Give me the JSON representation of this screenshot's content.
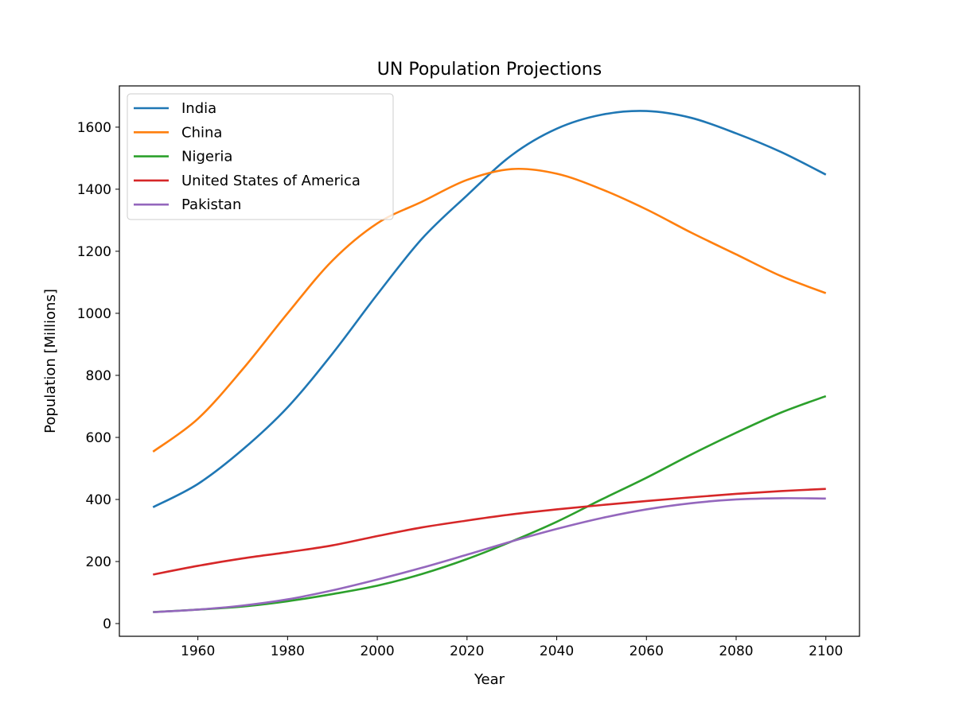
{
  "chart_data": {
    "type": "line",
    "title": "UN Population Projections",
    "xlabel": "Year",
    "ylabel": "Population [Millions]",
    "xlim": [
      1942.5,
      2107.5
    ],
    "ylim": [
      -41,
      1733
    ],
    "xticks": [
      1960,
      1980,
      2000,
      2020,
      2040,
      2060,
      2080,
      2100
    ],
    "yticks": [
      0,
      200,
      400,
      600,
      800,
      1000,
      1200,
      1400,
      1600
    ],
    "grid": false,
    "legend_position": "upper-left",
    "x": [
      1950,
      1960,
      1970,
      1980,
      1990,
      2000,
      2010,
      2020,
      2030,
      2040,
      2050,
      2060,
      2070,
      2080,
      2090,
      2100
    ],
    "series": [
      {
        "name": "India",
        "color": "#1f77b4",
        "values": [
          375,
          450,
          561,
          697,
          870,
          1061,
          1241,
          1380,
          1510,
          1595,
          1640,
          1652,
          1630,
          1580,
          1520,
          1447
        ]
      },
      {
        "name": "China",
        "color": "#ff7f0e",
        "values": [
          554,
          660,
          820,
          1000,
          1170,
          1290,
          1360,
          1430,
          1465,
          1450,
          1400,
          1335,
          1260,
          1190,
          1120,
          1065
        ]
      },
      {
        "name": "Nigeria",
        "color": "#2ca02c",
        "values": [
          37,
          45,
          55,
          72,
          95,
          122,
          160,
          208,
          265,
          328,
          400,
          470,
          545,
          615,
          680,
          733
        ]
      },
      {
        "name": "United States of America",
        "color": "#d62728",
        "values": [
          158,
          186,
          210,
          230,
          252,
          282,
          310,
          332,
          352,
          368,
          382,
          395,
          407,
          418,
          427,
          434
        ]
      },
      {
        "name": "Pakistan",
        "color": "#9467bd",
        "values": [
          37,
          45,
          58,
          78,
          107,
          142,
          180,
          222,
          265,
          305,
          340,
          368,
          388,
          400,
          404,
          403
        ]
      }
    ]
  }
}
